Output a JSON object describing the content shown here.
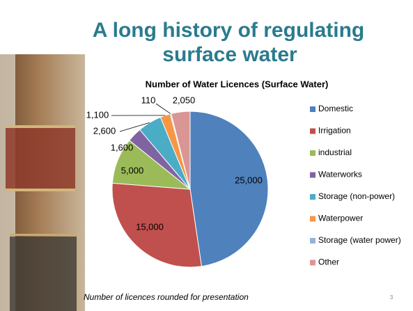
{
  "slide": {
    "title_lines": [
      "A long history of regulating",
      "surface water"
    ],
    "footnote": "Number of licences rounded for presentation",
    "page_number": "3"
  },
  "chart_data": {
    "type": "pie",
    "title": "Number of Water Licences (Surface Water)",
    "categories": [
      "Domestic",
      "Irrigation",
      "industrial",
      "Waterworks",
      "Storage (non-power)",
      "Waterpower",
      "Storage (water power)",
      "Other"
    ],
    "values": [
      25000,
      15000,
      5000,
      1600,
      2600,
      1100,
      110,
      2050
    ],
    "value_labels": [
      "25,000",
      "15,000",
      "5,000",
      "1,600",
      "2,600",
      "1,100",
      "110",
      "2,050"
    ],
    "colors": [
      "#4f81bd",
      "#c0504d",
      "#9bbb59",
      "#8064a2",
      "#4bacc6",
      "#f79646",
      "#95b3d7",
      "#d99694"
    ],
    "legend": "right"
  }
}
